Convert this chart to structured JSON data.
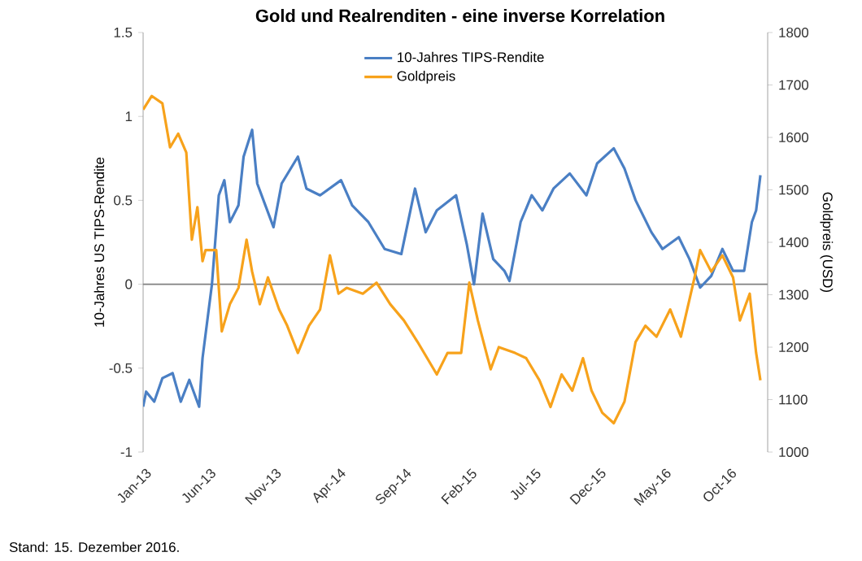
{
  "chart_data": {
    "type": "line",
    "title": "Gold und Realrenditen - eine inverse Korrelation",
    "ylabel": "10-Jahres US TIPS-Rendite",
    "y2label": "Goldpreis (USD)",
    "annotations": [
      "Stand: 15. Dezember 2016."
    ],
    "xlim": [
      "2013-01-01",
      "2017-01-01"
    ],
    "xticks": [
      {
        "value": "2013-01-01",
        "label": "Jan-13"
      },
      {
        "value": "2013-06-01",
        "label": "Jun-13"
      },
      {
        "value": "2013-11-01",
        "label": "Nov-13"
      },
      {
        "value": "2014-04-01",
        "label": "Apr-14"
      },
      {
        "value": "2014-09-01",
        "label": "Sep-14"
      },
      {
        "value": "2015-02-01",
        "label": "Feb-15"
      },
      {
        "value": "2015-07-01",
        "label": "Jul-15"
      },
      {
        "value": "2015-12-01",
        "label": "Dec-15"
      },
      {
        "value": "2016-05-01",
        "label": "May-16"
      },
      {
        "value": "2016-10-01",
        "label": "Oct-16"
      }
    ],
    "ylim": [
      -1,
      1.5
    ],
    "yticks": [
      -1,
      -0.5,
      0,
      0.5,
      1,
      1.5
    ],
    "y2lim": [
      1000,
      1800
    ],
    "y2ticks": [
      1000,
      1100,
      1200,
      1300,
      1400,
      1500,
      1600,
      1700,
      1800
    ],
    "ref_lines": [
      {
        "axis": "y",
        "value": 0,
        "color": "#808080"
      }
    ],
    "legend": "top",
    "line_style": "solid",
    "series": [
      {
        "name": "10-Jahres TIPS-Rendite",
        "color": "#4a7fc4",
        "x": [
          "2013-01-01",
          "2013-01-08",
          "2013-01-27",
          "2013-02-15",
          "2013-03-11",
          "2013-03-30",
          "2013-04-19",
          "2013-05-12",
          "2013-05-20",
          "2013-06-11",
          "2013-06-27",
          "2013-07-10",
          "2013-07-23",
          "2013-08-12",
          "2013-08-24",
          "2013-09-13",
          "2013-09-25",
          "2013-10-14",
          "2013-11-02",
          "2013-11-21",
          "2013-12-29",
          "2014-01-18",
          "2014-02-19",
          "2014-04-09",
          "2014-05-05",
          "2014-06-12",
          "2014-07-20",
          "2014-08-28",
          "2014-09-29",
          "2014-10-24",
          "2014-11-19",
          "2015-01-03",
          "2015-01-28",
          "2015-02-14",
          "2015-03-06",
          "2015-03-31",
          "2015-04-26",
          "2015-05-08",
          "2015-06-03",
          "2015-06-29",
          "2015-07-24",
          "2015-08-19",
          "2015-09-26",
          "2015-11-04",
          "2015-11-29",
          "2016-01-07",
          "2016-02-01",
          "2016-02-27",
          "2016-04-04",
          "2016-04-30",
          "2016-06-07",
          "2016-07-02",
          "2016-07-27",
          "2016-08-22",
          "2016-09-17",
          "2016-10-12",
          "2016-11-07",
          "2016-11-25",
          "2016-12-05",
          "2016-12-15"
        ],
        "values": [
          -0.73,
          -0.64,
          -0.7,
          -0.56,
          -0.53,
          -0.7,
          -0.57,
          -0.73,
          -0.44,
          0.0,
          0.53,
          0.62,
          0.37,
          0.47,
          0.76,
          0.92,
          0.6,
          0.47,
          0.34,
          0.6,
          0.76,
          0.57,
          0.53,
          0.62,
          0.47,
          0.37,
          0.21,
          0.18,
          0.57,
          0.31,
          0.44,
          0.53,
          0.24,
          0.0,
          0.42,
          0.15,
          0.08,
          0.02,
          0.37,
          0.53,
          0.44,
          0.57,
          0.66,
          0.53,
          0.72,
          0.81,
          0.69,
          0.5,
          0.31,
          0.21,
          0.28,
          0.15,
          -0.02,
          0.05,
          0.21,
          0.08,
          0.08,
          0.37,
          0.44,
          0.65
        ]
      },
      {
        "name": "Goldpreis",
        "color": "#f7a21b",
        "axis": "y2",
        "x": [
          "2013-01-01",
          "2013-01-21",
          "2013-02-15",
          "2013-03-05",
          "2013-03-24",
          "2013-04-12",
          "2013-04-25",
          "2013-05-08",
          "2013-05-20",
          "2013-05-27",
          "2013-06-21",
          "2013-07-04",
          "2013-07-23",
          "2013-08-12",
          "2013-08-31",
          "2013-09-13",
          "2013-10-01",
          "2013-10-20",
          "2013-11-15",
          "2013-12-04",
          "2013-12-29",
          "2014-01-24",
          "2014-02-19",
          "2014-03-14",
          "2014-04-03",
          "2014-04-22",
          "2014-05-30",
          "2014-07-01",
          "2014-08-02",
          "2014-09-03",
          "2014-10-05",
          "2014-11-19",
          "2014-12-14",
          "2015-01-15",
          "2015-02-03",
          "2015-02-23",
          "2015-03-25",
          "2015-04-13",
          "2015-05-21",
          "2015-06-16",
          "2015-07-17",
          "2015-08-12",
          "2015-09-07",
          "2015-10-02",
          "2015-10-27",
          "2015-11-16",
          "2015-12-11",
          "2016-01-07",
          "2016-02-01",
          "2016-02-27",
          "2016-03-21",
          "2016-04-16",
          "2016-05-18",
          "2016-06-12",
          "2016-07-14",
          "2016-07-27",
          "2016-08-22",
          "2016-09-17",
          "2016-10-12",
          "2016-10-28",
          "2016-11-20",
          "2016-12-05",
          "2016-12-15"
        ],
        "values": [
          1653,
          1679,
          1665,
          1581,
          1607,
          1571,
          1405,
          1467,
          1364,
          1385,
          1385,
          1230,
          1282,
          1313,
          1405,
          1344,
          1282,
          1333,
          1272,
          1241,
          1189,
          1241,
          1272,
          1375,
          1302,
          1313,
          1302,
          1323,
          1282,
          1251,
          1210,
          1148,
          1189,
          1189,
          1323,
          1251,
          1158,
          1200,
          1189,
          1179,
          1137,
          1086,
          1148,
          1117,
          1179,
          1117,
          1075,
          1055,
          1096,
          1210,
          1241,
          1220,
          1272,
          1220,
          1333,
          1385,
          1344,
          1375,
          1333,
          1251,
          1302,
          1189,
          1137
        ]
      }
    ]
  }
}
